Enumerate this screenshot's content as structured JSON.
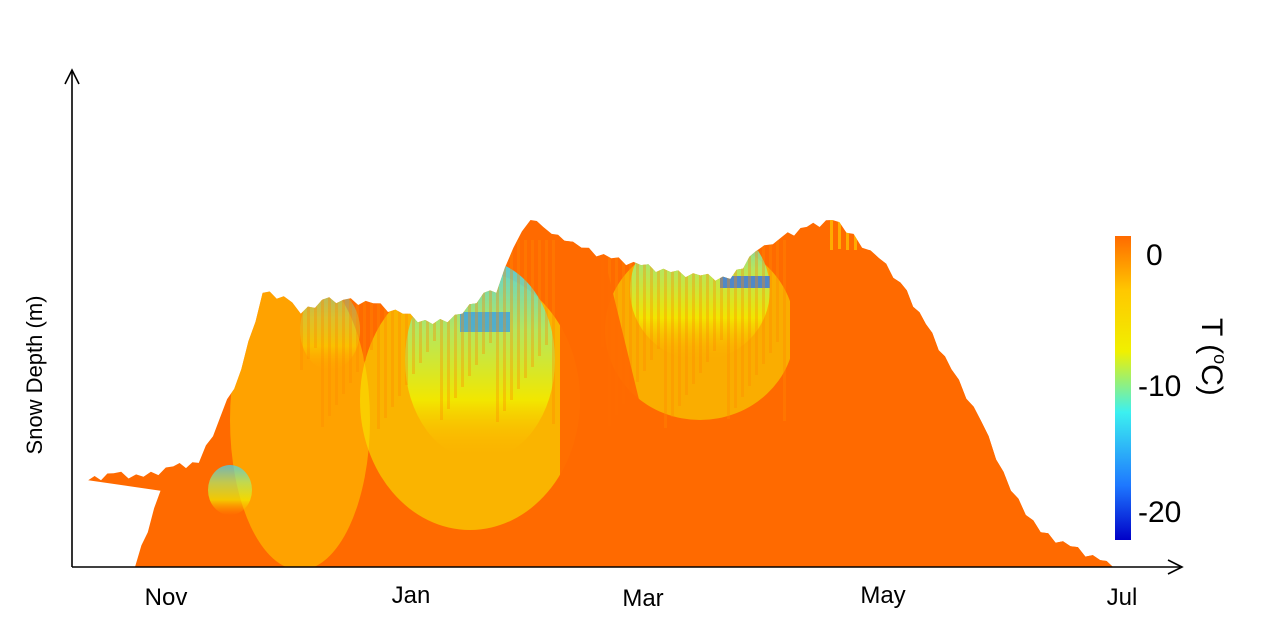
{
  "chart_data": {
    "type": "area",
    "xlabel": "",
    "ylabel": "Snow  Depth (m)",
    "x_tick_labels": [
      "Nov",
      "Jan",
      "Mar",
      "May",
      "Jul"
    ],
    "colorbar": {
      "label": "T (°C)",
      "label_base": "T (",
      "label_sup": "o",
      "label_end": "C)",
      "ticks": [
        "0",
        "-10",
        "-20"
      ],
      "range": [
        -23,
        0
      ],
      "colors": [
        "#0000c8",
        "#1e78ff",
        "#3cf0f0",
        "#f0f000",
        "#ffc800",
        "#ff6a00"
      ]
    },
    "depth_profile": {
      "x": [
        "Oct 22",
        "Oct 28",
        "Nov 2",
        "Nov 8",
        "Nov 15",
        "Nov 22",
        "Nov 28",
        "Dec 3",
        "Dec 8",
        "Dec 13",
        "Dec 18",
        "Dec 22",
        "Dec 27",
        "Jan 1",
        "Jan 8",
        "Jan 15",
        "Jan 22",
        "Jan 29",
        "Feb 3",
        "Feb 6",
        "Feb 10",
        "Feb 14",
        "Feb 17",
        "Feb 19",
        "Feb 22",
        "Feb 26",
        "Mar 5",
        "Mar 12",
        "Mar 19",
        "Mar 26",
        "Apr 2",
        "Apr 8",
        "Apr 12",
        "Apr 14",
        "Apr 20",
        "Apr 26",
        "May 1",
        "May 3",
        "May 7",
        "May 12",
        "May 18",
        "May 24",
        "May 31",
        "Jun 7",
        "Jun 14",
        "Jun 21",
        "Jun 28",
        "Jul 1"
      ],
      "y_relative": [
        0.0,
        0.22,
        0.25,
        0.27,
        0.26,
        0.29,
        0.3,
        0.43,
        0.57,
        0.79,
        0.78,
        0.73,
        0.77,
        0.77,
        0.76,
        0.73,
        0.7,
        0.73,
        0.79,
        0.79,
        0.92,
        1.0,
        0.98,
        0.96,
        0.94,
        0.92,
        0.89,
        0.87,
        0.85,
        0.84,
        0.83,
        0.91,
        0.93,
        0.95,
        0.98,
        1.0,
        0.96,
        0.92,
        0.89,
        0.82,
        0.7,
        0.57,
        0.42,
        0.22,
        0.1,
        0.06,
        0.02,
        0.0
      ]
    },
    "axis_arrows": true,
    "grid": false,
    "legend": "none"
  }
}
